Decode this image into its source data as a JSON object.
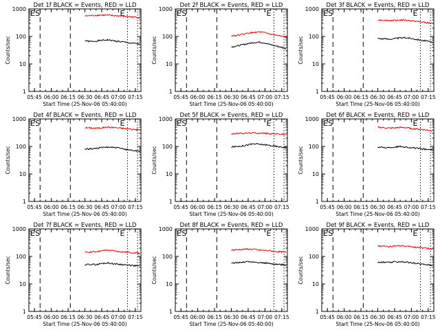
{
  "page": {
    "background": "#ffffff",
    "event_color": "#000000",
    "lld_color": "#dd0000"
  },
  "common": {
    "ylabel": "Counts/sec",
    "xlabel": "Start Time (25-Nov-06 05:40:00)",
    "y_ticks": [
      "1",
      "10",
      "100",
      "1000"
    ],
    "x_ticks": [
      "05:45",
      "06:00",
      "06:15",
      "06:30",
      "06:45",
      "07:00",
      "07:15"
    ],
    "x_range_minutes_after_start": [
      0,
      100
    ],
    "y_range": [
      1,
      1000
    ],
    "y_scale": "log",
    "time_markers": [
      {
        "type": "dashed",
        "minute": 10,
        "label": "S"
      },
      {
        "type": "dashed",
        "minute": 37
      },
      {
        "type": "dotted",
        "minute": 88
      },
      {
        "type": "dotted",
        "minute": 97
      }
    ],
    "edge_labels": [
      "E",
      "E"
    ]
  },
  "chart_data": [
    {
      "type": "line",
      "title": "Det 1f BLACK = Events, RED = LLD",
      "series": [
        {
          "name": "Events",
          "color": "#000000",
          "x_minutes": [
            50,
            55,
            60,
            65,
            70,
            75,
            80,
            85,
            90,
            95,
            99
          ],
          "values": [
            70,
            65,
            68,
            72,
            75,
            70,
            66,
            62,
            58,
            55,
            52
          ]
        },
        {
          "name": "LLD",
          "color": "#dd0000",
          "x_minutes": [
            50,
            55,
            60,
            65,
            70,
            75,
            80,
            85,
            90,
            95,
            99
          ],
          "values": [
            550,
            570,
            590,
            600,
            590,
            570,
            560,
            540,
            520,
            500,
            480
          ]
        }
      ]
    },
    {
      "type": "line",
      "title": "Det 2f BLACK = Events, RED = LLD",
      "series": [
        {
          "name": "Events",
          "color": "#000000",
          "x_minutes": [
            50,
            55,
            60,
            65,
            70,
            75,
            80,
            85,
            90,
            95,
            99
          ],
          "values": [
            42,
            45,
            50,
            55,
            60,
            62,
            58,
            50,
            45,
            40,
            36
          ]
        },
        {
          "name": "LLD",
          "color": "#dd0000",
          "x_minutes": [
            50,
            55,
            60,
            65,
            70,
            75,
            80,
            85,
            90,
            95,
            99
          ],
          "values": [
            105,
            110,
            120,
            130,
            140,
            145,
            135,
            120,
            110,
            100,
            95
          ]
        }
      ]
    },
    {
      "type": "line",
      "title": "Det 3f BLACK = Events, RED = LLD",
      "series": [
        {
          "name": "Events",
          "color": "#000000",
          "x_minutes": [
            50,
            55,
            60,
            65,
            70,
            75,
            80,
            85,
            90,
            95,
            99
          ],
          "values": [
            85,
            82,
            80,
            83,
            88,
            90,
            85,
            78,
            72,
            66,
            60
          ]
        },
        {
          "name": "LLD",
          "color": "#dd0000",
          "x_minutes": [
            50,
            55,
            60,
            65,
            70,
            75,
            80,
            85,
            90,
            95,
            99
          ],
          "values": [
            400,
            390,
            380,
            385,
            395,
            390,
            370,
            350,
            330,
            310,
            290
          ]
        }
      ]
    },
    {
      "type": "line",
      "title": "Det 4f BLACK = Events, RED = LLD",
      "series": [
        {
          "name": "Events",
          "color": "#000000",
          "x_minutes": [
            50,
            55,
            60,
            65,
            70,
            75,
            80,
            85,
            90,
            95,
            99
          ],
          "values": [
            80,
            82,
            85,
            90,
            95,
            92,
            88,
            80,
            75,
            70,
            68
          ]
        },
        {
          "name": "LLD",
          "color": "#dd0000",
          "x_minutes": [
            50,
            55,
            60,
            65,
            70,
            75,
            80,
            85,
            90,
            95,
            99
          ],
          "values": [
            480,
            470,
            460,
            480,
            500,
            490,
            470,
            450,
            430,
            410,
            400
          ]
        }
      ]
    },
    {
      "type": "line",
      "title": "Det 5f BLACK = Events, RED = LLD",
      "series": [
        {
          "name": "Events",
          "color": "#000000",
          "x_minutes": [
            50,
            55,
            60,
            65,
            70,
            75,
            80,
            85,
            90,
            95,
            99
          ],
          "values": [
            95,
            100,
            105,
            115,
            125,
            120,
            115,
            108,
            100,
            95,
            90
          ]
        },
        {
          "name": "LLD",
          "color": "#dd0000",
          "x_minutes": [
            50,
            55,
            60,
            65,
            70,
            75,
            80,
            85,
            90,
            95,
            99
          ],
          "values": [
            290,
            295,
            300,
            305,
            310,
            305,
            300,
            290,
            285,
            280,
            270
          ]
        }
      ]
    },
    {
      "type": "line",
      "title": "Det 6f BLACK = Events, RED = LLD",
      "series": [
        {
          "name": "Events",
          "color": "#000000",
          "x_minutes": [
            50,
            55,
            60,
            65,
            70,
            75,
            80,
            85,
            90,
            95,
            99
          ],
          "values": [
            95,
            92,
            90,
            95,
            100,
            95,
            90,
            85,
            80,
            78,
            75
          ]
        },
        {
          "name": "LLD",
          "color": "#dd0000",
          "x_minutes": [
            50,
            55,
            60,
            65,
            70,
            75,
            80,
            85,
            90,
            95,
            99
          ],
          "values": [
            500,
            480,
            460,
            470,
            490,
            480,
            450,
            430,
            410,
            390,
            370
          ]
        }
      ]
    },
    {
      "type": "line",
      "title": "Det 7f BLACK = Events, RED = LLD",
      "series": [
        {
          "name": "Events",
          "color": "#000000",
          "x_minutes": [
            50,
            55,
            60,
            65,
            70,
            75,
            80,
            85,
            90,
            95,
            99
          ],
          "values": [
            50,
            52,
            50,
            55,
            58,
            55,
            52,
            50,
            48,
            46,
            45
          ]
        },
        {
          "name": "LLD",
          "color": "#dd0000",
          "x_minutes": [
            50,
            55,
            60,
            65,
            70,
            75,
            80,
            85,
            90,
            95,
            99
          ],
          "values": [
            140,
            145,
            150,
            160,
            170,
            160,
            150,
            145,
            140,
            135,
            130
          ]
        }
      ]
    },
    {
      "type": "line",
      "title": "Det 8f BLACK = Events, RED = LLD",
      "series": [
        {
          "name": "Events",
          "color": "#000000",
          "x_minutes": [
            50,
            55,
            60,
            65,
            70,
            75,
            80,
            85,
            90,
            95,
            99
          ],
          "values": [
            55,
            60,
            62,
            65,
            62,
            60,
            58,
            55,
            52,
            50,
            48
          ]
        },
        {
          "name": "LLD",
          "color": "#dd0000",
          "x_minutes": [
            50,
            55,
            60,
            65,
            70,
            75,
            80,
            85,
            90,
            95,
            99
          ],
          "values": [
            170,
            175,
            180,
            185,
            180,
            170,
            165,
            160,
            150,
            145,
            140
          ]
        }
      ]
    },
    {
      "type": "line",
      "title": "Det 9f BLACK = Events, RED = LLD",
      "series": [
        {
          "name": "Events",
          "color": "#000000",
          "x_minutes": [
            50,
            55,
            60,
            65,
            70,
            75,
            80,
            85,
            90,
            95,
            99
          ],
          "values": [
            60,
            62,
            60,
            63,
            65,
            62,
            58,
            55,
            52,
            50,
            48
          ]
        },
        {
          "name": "LLD",
          "color": "#dd0000",
          "x_minutes": [
            50,
            55,
            60,
            65,
            70,
            75,
            80,
            85,
            90,
            95,
            99
          ],
          "values": [
            240,
            235,
            230,
            235,
            240,
            235,
            225,
            215,
            205,
            195,
            185
          ]
        }
      ]
    }
  ]
}
